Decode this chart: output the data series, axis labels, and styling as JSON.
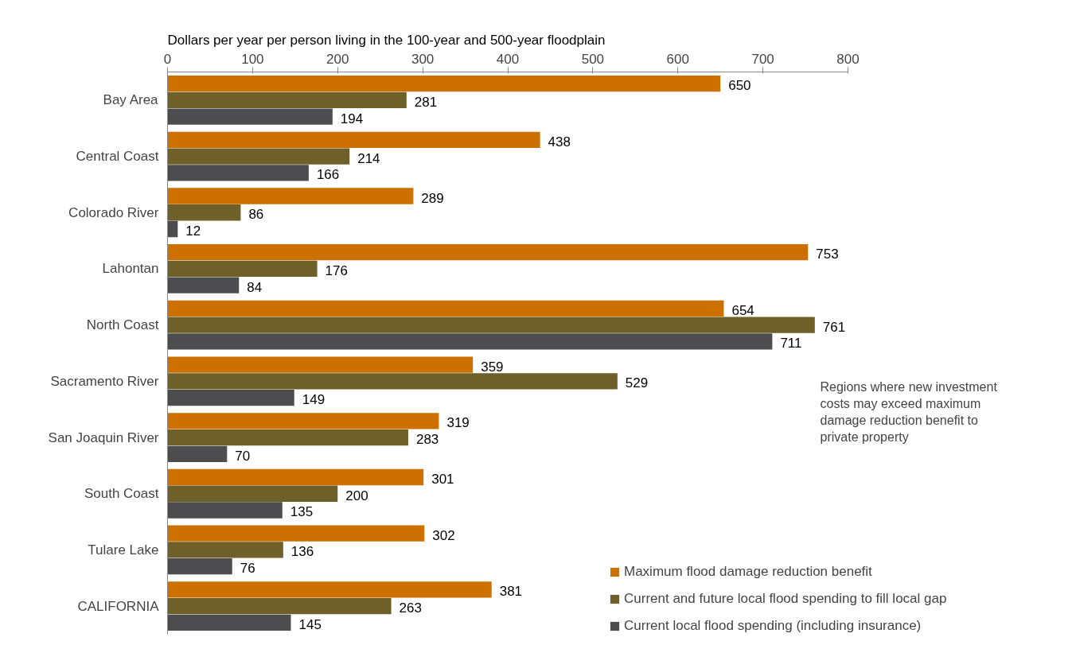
{
  "chart_data": {
    "type": "bar",
    "orientation": "horizontal",
    "xlabel": "Dollars per year per person living in the  100-year and 500-year floodplain",
    "categories": [
      "Bay Area",
      "Central Coast",
      "Colorado River",
      "Lahontan",
      "North Coast",
      "Sacramento River",
      "San Joaquin River",
      "South Coast",
      "Tulare Lake",
      "CALIFORNIA"
    ],
    "series": [
      {
        "name": "Maximum flood damage reduction benefit",
        "color": "#cc7000",
        "values": [
          650,
          438,
          289,
          753,
          654,
          359,
          319,
          301,
          302,
          381
        ]
      },
      {
        "name": "Current and future local flood spending to fill local gap",
        "color": "#6f5f28",
        "values": [
          281,
          214,
          86,
          176,
          761,
          529,
          283,
          200,
          136,
          263
        ]
      },
      {
        "name": "Current local flood spending (including insurance)",
        "color": "#4d4d4f",
        "values": [
          194,
          166,
          12,
          84,
          711,
          149,
          70,
          135,
          76,
          145
        ]
      }
    ],
    "xlim": [
      0,
      800
    ],
    "xticks": [
      0,
      100,
      200,
      300,
      400,
      500,
      600,
      700,
      800
    ],
    "data_labels": true,
    "grid": false,
    "legend": "bottom right",
    "annotations": [
      "Regions where new investment\ncosts may exceed maximum\ndamage reduction benefit to\nprivate property"
    ]
  }
}
